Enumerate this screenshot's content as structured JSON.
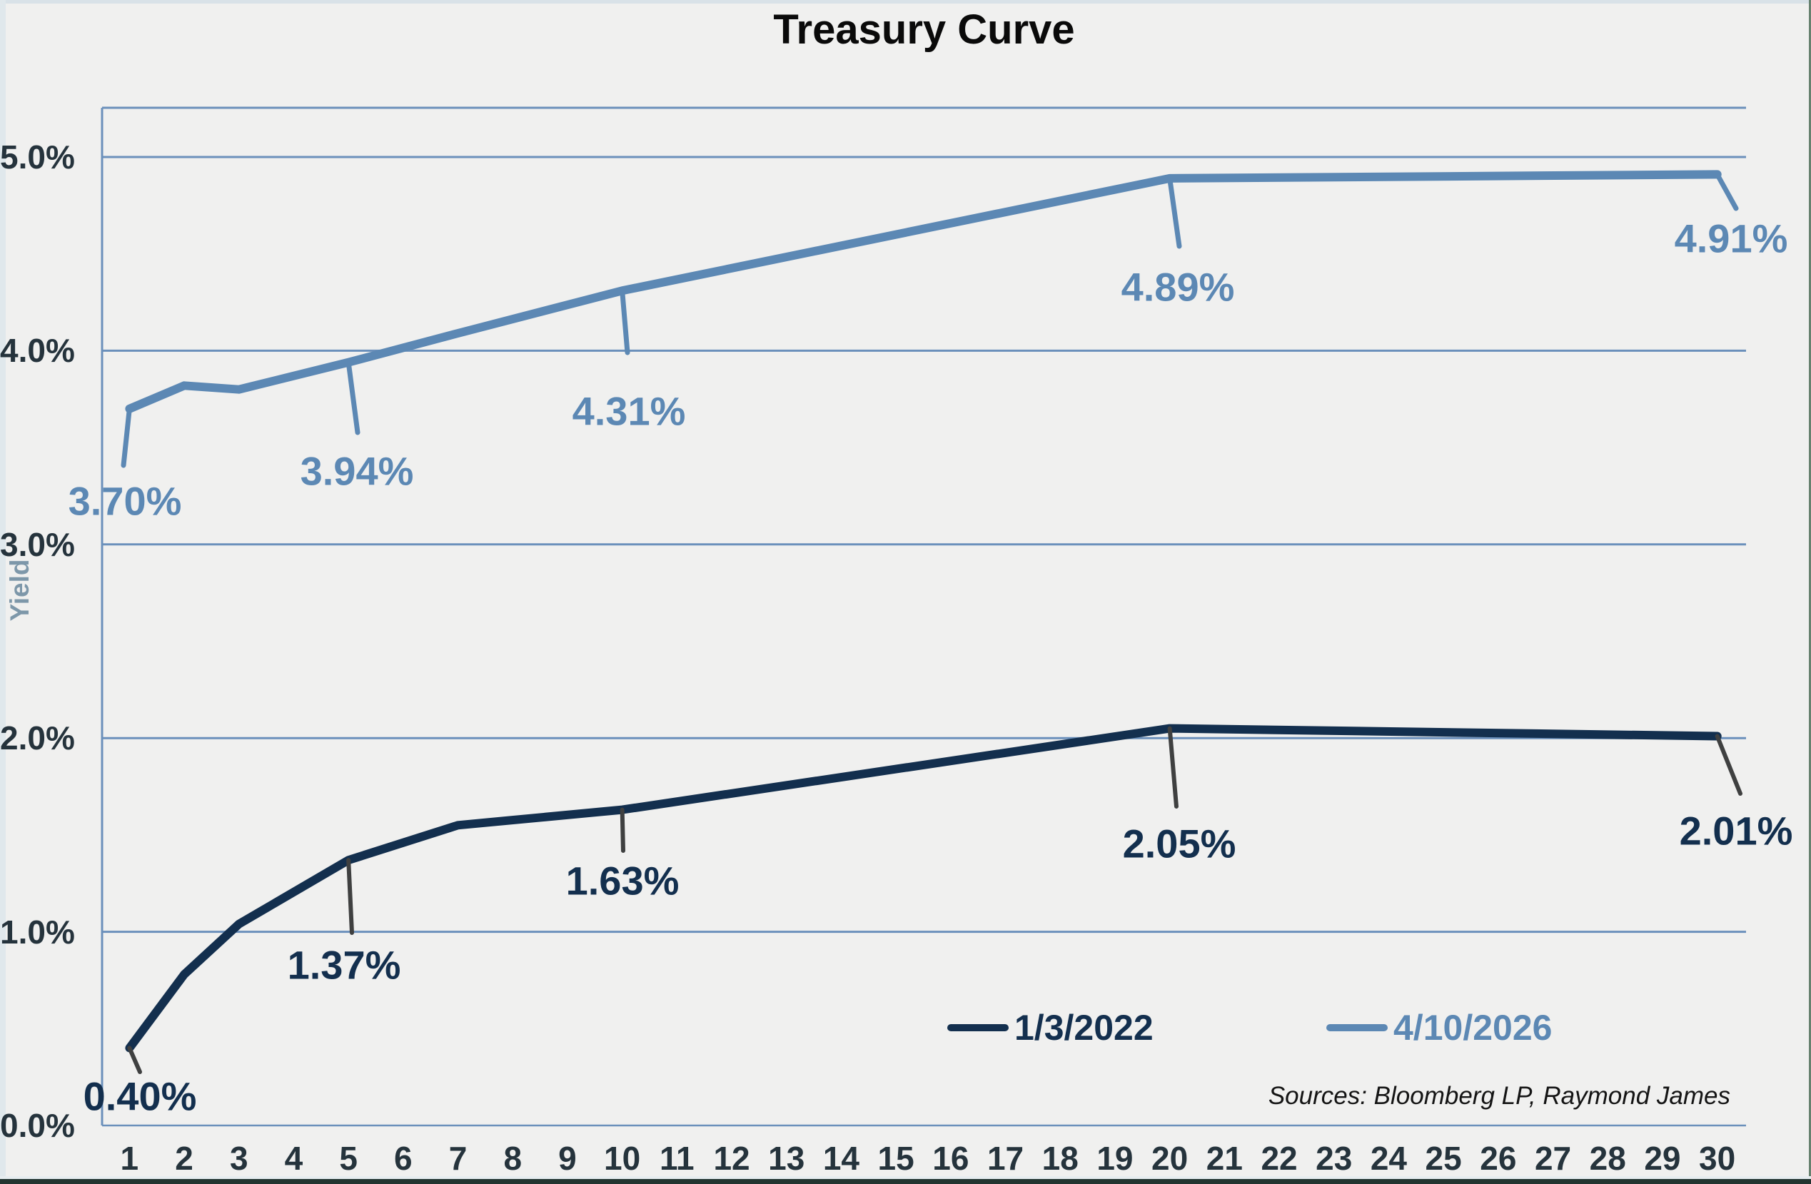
{
  "window": {
    "top_strip_color": "#d9e2e8",
    "left_strip_color": "#e0e8ec",
    "right_border_color": "#67816f",
    "bottom_bar_color": "#223430",
    "bottom_light_line_color": "#e7edf0",
    "background_color": "#f0f0ef"
  },
  "chart_data": {
    "type": "line",
    "title": "Treasury Curve",
    "xlabel": "",
    "ylabel": "Yield",
    "ylim": [
      0,
      5.25
    ],
    "y_gridlines": [
      0,
      1,
      2,
      3,
      4,
      5
    ],
    "y_tick_labels": [
      "0.0%",
      "1.0%",
      "2.0%",
      "3.0%",
      "4.0%",
      "5.0%"
    ],
    "x_ticks": [
      1,
      2,
      3,
      4,
      5,
      6,
      7,
      8,
      9,
      10,
      11,
      12,
      13,
      14,
      15,
      16,
      17,
      18,
      19,
      20,
      21,
      22,
      23,
      24,
      25,
      26,
      27,
      28,
      29,
      30
    ],
    "grid_color": "#6b90bb",
    "series": [
      {
        "name": "1/3/2022",
        "color": "#132f4e",
        "leader_color": "#3f4040",
        "x": [
          1,
          2,
          3,
          5,
          7,
          10,
          20,
          30
        ],
        "values": [
          0.4,
          0.78,
          1.04,
          1.37,
          1.55,
          1.63,
          2.05,
          2.01
        ]
      },
      {
        "name": "4/10/2026",
        "color": "#5c88b4",
        "leader_color": "#5c88b4",
        "x": [
          1,
          2,
          3,
          5,
          7,
          10,
          20,
          30
        ],
        "values": [
          3.7,
          3.82,
          3.8,
          3.94,
          4.09,
          4.31,
          4.89,
          4.91
        ]
      }
    ],
    "data_labels": [
      {
        "series": 0,
        "year": 1,
        "text": "0.40%"
      },
      {
        "series": 0,
        "year": 5,
        "text": "1.37%"
      },
      {
        "series": 0,
        "year": 10,
        "text": "1.63%"
      },
      {
        "series": 0,
        "year": 20,
        "text": "2.05%"
      },
      {
        "series": 0,
        "year": 30,
        "text": "2.01%"
      },
      {
        "series": 1,
        "year": 1,
        "text": "3.70%"
      },
      {
        "series": 1,
        "year": 5,
        "text": "3.94%"
      },
      {
        "series": 1,
        "year": 10,
        "text": "4.31%"
      },
      {
        "series": 1,
        "year": 20,
        "text": "4.89%"
      },
      {
        "series": 1,
        "year": 30,
        "text": "4.91%"
      }
    ],
    "legend_position": "inside-bottom-right"
  },
  "legend": {
    "item_2022": "1/3/2022",
    "item_2026": "4/10/2026"
  },
  "footer": {
    "sources": "Sources: Bloomberg LP, Raymond James"
  }
}
